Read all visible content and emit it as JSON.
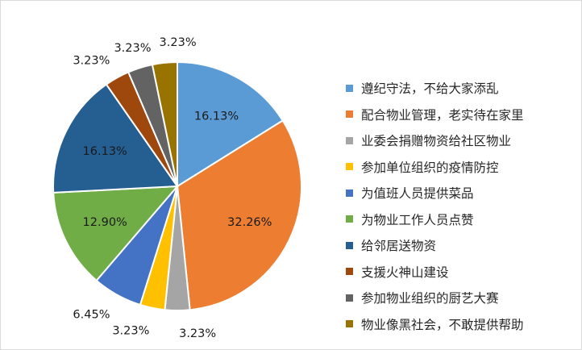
{
  "chart_data": {
    "type": "pie",
    "title": "",
    "legend_position": "right",
    "slices": [
      {
        "label": "遵纪守法，不给大家添乱",
        "value": 16.13,
        "value_label": "16.13%",
        "color": "#5b9bd5"
      },
      {
        "label": "配合物业管理，老实待在家里",
        "value": 32.26,
        "value_label": "32.26%",
        "color": "#ed7d31"
      },
      {
        "label": "业委会捐赠物资给社区物业",
        "value": 3.23,
        "value_label": "3.23%",
        "color": "#a5a5a5"
      },
      {
        "label": "参加单位组织的疫情防控",
        "value": 3.23,
        "value_label": "3.23%",
        "color": "#ffc000"
      },
      {
        "label": "为值班人员提供菜品",
        "value": 6.45,
        "value_label": "6.45%",
        "color": "#4472c4"
      },
      {
        "label": "为物业工作人员点赞",
        "value": 12.9,
        "value_label": "12.90%",
        "color": "#70ad47"
      },
      {
        "label": "给邻居送物资",
        "value": 16.13,
        "value_label": "16.13%",
        "color": "#255e91"
      },
      {
        "label": "支援火神山建设",
        "value": 3.23,
        "value_label": "3.23%",
        "color": "#9e480e"
      },
      {
        "label": "参加物业组织的厨艺大赛",
        "value": 3.23,
        "value_label": "3.23%",
        "color": "#636363"
      },
      {
        "label": "物业像黑社会，不敢提供帮助",
        "value": 3.23,
        "value_label": "3.23%",
        "color": "#997300"
      }
    ]
  }
}
